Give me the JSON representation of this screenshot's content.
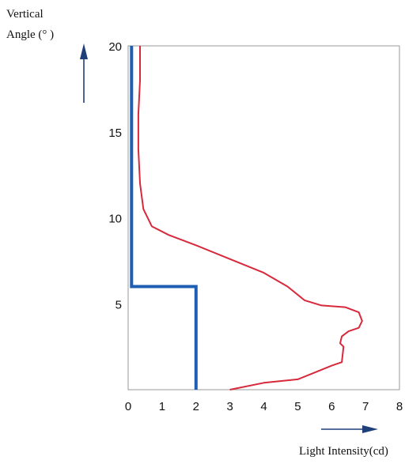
{
  "chart_data": {
    "type": "line",
    "title": "",
    "ylabel_line1": "Vertical",
    "ylabel_line2": "Angle (°  )",
    "xlabel": "Light Intensity(cd)",
    "xlim": [
      0,
      8
    ],
    "ylim": [
      0,
      20
    ],
    "xticks": [
      "0",
      "1",
      "2",
      "3",
      "4",
      "5",
      "6",
      "7",
      "8"
    ],
    "yticks": [
      "5",
      "10",
      "15",
      "20"
    ],
    "grid": false,
    "series": [
      {
        "color": "#1f5fb3",
        "points": [
          [
            0.1,
            20
          ],
          [
            0.1,
            6
          ],
          [
            2,
            6
          ],
          [
            2,
            0
          ]
        ]
      },
      {
        "color": "#d8283c",
        "points": [
          [
            0.35,
            20
          ],
          [
            0.35,
            18
          ],
          [
            0.3,
            16
          ],
          [
            0.3,
            14
          ],
          [
            0.35,
            12
          ],
          [
            0.45,
            10.5
          ],
          [
            0.7,
            9.5
          ],
          [
            1.2,
            9
          ],
          [
            2.0,
            8.4
          ],
          [
            3.0,
            7.6
          ],
          [
            4.0,
            6.8
          ],
          [
            4.7,
            6
          ],
          [
            5.2,
            5.2
          ],
          [
            5.7,
            4.9
          ],
          [
            6.4,
            4.8
          ],
          [
            6.8,
            4.5
          ],
          [
            6.9,
            4.0
          ],
          [
            6.8,
            3.6
          ],
          [
            6.5,
            3.4
          ],
          [
            6.3,
            3.1
          ],
          [
            6.25,
            2.7
          ],
          [
            6.35,
            2.5
          ],
          [
            6.3,
            1.6
          ],
          [
            6.0,
            1.4
          ],
          [
            5.5,
            1.0
          ],
          [
            5.0,
            0.6
          ],
          [
            4.0,
            0.4
          ],
          [
            3.0,
            0
          ]
        ]
      }
    ]
  }
}
